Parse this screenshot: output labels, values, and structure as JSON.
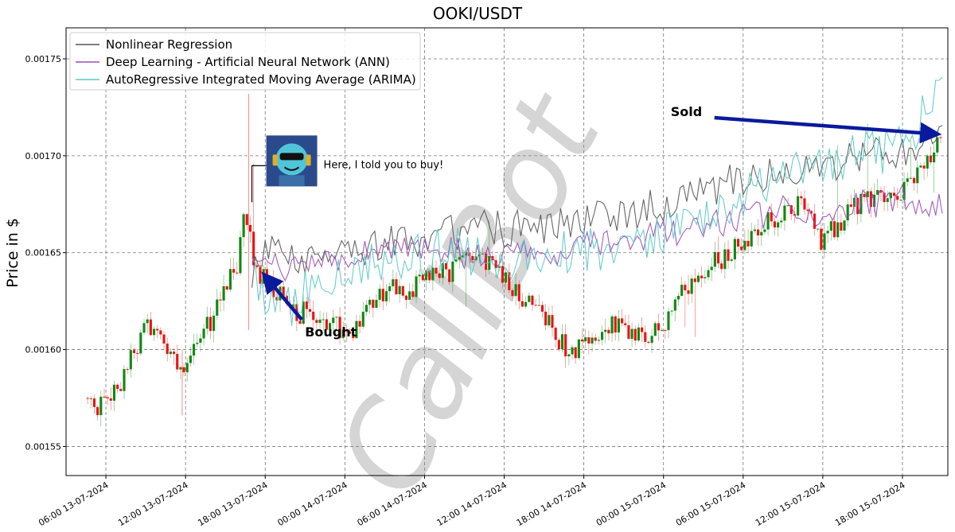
{
  "chart_data": {
    "type": "line",
    "title": "OOKI/USDT",
    "ylabel": "Price in $",
    "xlabel": "",
    "ylim": [
      0.001535,
      0.001766
    ],
    "xlim": [
      "2024-07-13 03:00",
      "2024-07-15 21:25"
    ],
    "grid": true,
    "legend_position": "top-left",
    "x_ticks": [
      {
        "t": "2024-07-13 06:00",
        "label": "06:00 13-07-2024"
      },
      {
        "t": "2024-07-13 12:00",
        "label": "12:00 13-07-2024"
      },
      {
        "t": "2024-07-13 18:00",
        "label": "18:00 13-07-2024"
      },
      {
        "t": "2024-07-14 00:00",
        "label": "00:00 14-07-2024"
      },
      {
        "t": "2024-07-14 06:00",
        "label": "06:00 14-07-2024"
      },
      {
        "t": "2024-07-14 12:00",
        "label": "12:00 14-07-2024"
      },
      {
        "t": "2024-07-14 18:00",
        "label": "18:00 14-07-2024"
      },
      {
        "t": "2024-07-15 00:00",
        "label": "00:00 15-07-2024"
      },
      {
        "t": "2024-07-15 06:00",
        "label": "06:00 15-07-2024"
      },
      {
        "t": "2024-07-15 12:00",
        "label": "12:00 15-07-2024"
      },
      {
        "t": "2024-07-15 18:00",
        "label": "18:00 15-07-2024"
      }
    ],
    "y_ticks": [
      {
        "v": 0.00155,
        "label": "0.00155"
      },
      {
        "v": 0.0016,
        "label": "0.00160"
      },
      {
        "v": 0.00165,
        "label": "0.00165"
      },
      {
        "v": 0.0017,
        "label": "0.00170"
      },
      {
        "v": 0.00175,
        "label": "0.00175"
      }
    ],
    "price_path": [
      [
        "2024-07-13 04:30",
        0.001575
      ],
      [
        "2024-07-13 05:30",
        0.00157
      ],
      [
        "2024-07-13 07:00",
        0.00158
      ],
      [
        "2024-07-13 08:00",
        0.001595
      ],
      [
        "2024-07-13 09:00",
        0.001612
      ],
      [
        "2024-07-13 10:00",
        0.00161
      ],
      [
        "2024-07-13 11:00",
        0.0016
      ],
      [
        "2024-07-13 12:00",
        0.001588
      ],
      [
        "2024-07-13 13:00",
        0.001605
      ],
      [
        "2024-07-13 14:00",
        0.001615
      ],
      [
        "2024-07-13 15:00",
        0.001628
      ],
      [
        "2024-07-13 16:00",
        0.001645
      ],
      [
        "2024-07-13 16:30",
        0.001675
      ],
      [
        "2024-07-13 17:00",
        0.001655
      ],
      [
        "2024-07-13 17:40",
        0.00164
      ],
      [
        "2024-07-13 18:30",
        0.001632
      ],
      [
        "2024-07-13 19:30",
        0.001625
      ],
      [
        "2024-07-13 20:30",
        0.001618
      ],
      [
        "2024-07-13 21:30",
        0.001622
      ],
      [
        "2024-07-13 23:00",
        0.001612
      ],
      [
        "2024-07-14 00:30",
        0.00161
      ],
      [
        "2024-07-14 01:30",
        0.001615
      ],
      [
        "2024-07-14 02:30",
        0.001625
      ],
      [
        "2024-07-14 04:00",
        0.001632
      ],
      [
        "2024-07-14 05:00",
        0.001628
      ],
      [
        "2024-07-14 06:00",
        0.001636
      ],
      [
        "2024-07-14 07:00",
        0.00164
      ],
      [
        "2024-07-14 08:00",
        0.001638
      ],
      [
        "2024-07-14 09:00",
        0.001645
      ],
      [
        "2024-07-14 10:00",
        0.00165
      ],
      [
        "2024-07-14 11:00",
        0.001643
      ],
      [
        "2024-07-14 12:00",
        0.001636
      ],
      [
        "2024-07-14 13:00",
        0.00163
      ],
      [
        "2024-07-14 14:00",
        0.001625
      ],
      [
        "2024-07-14 15:00",
        0.001618
      ],
      [
        "2024-07-14 16:00",
        0.001608
      ],
      [
        "2024-07-14 17:00",
        0.001598
      ],
      [
        "2024-07-14 18:00",
        0.0016
      ],
      [
        "2024-07-14 19:00",
        0.001608
      ],
      [
        "2024-07-14 20:00",
        0.001612
      ],
      [
        "2024-07-14 21:00",
        0.00161
      ],
      [
        "2024-07-14 22:00",
        0.001606
      ],
      [
        "2024-07-14 23:00",
        0.001604
      ],
      [
        "2024-07-15 00:00",
        0.001612
      ],
      [
        "2024-07-15 01:00",
        0.001625
      ],
      [
        "2024-07-15 02:00",
        0.00163
      ],
      [
        "2024-07-15 03:00",
        0.001635
      ],
      [
        "2024-07-15 04:00",
        0.001645
      ],
      [
        "2024-07-15 05:00",
        0.00165
      ],
      [
        "2024-07-15 06:00",
        0.001655
      ],
      [
        "2024-07-15 07:00",
        0.001662
      ],
      [
        "2024-07-15 08:00",
        0.001665
      ],
      [
        "2024-07-15 09:00",
        0.00167
      ],
      [
        "2024-07-15 10:00",
        0.001675
      ],
      [
        "2024-07-15 11:00",
        0.001676
      ],
      [
        "2024-07-15 12:00",
        0.001655
      ],
      [
        "2024-07-15 13:00",
        0.001662
      ],
      [
        "2024-07-15 14:00",
        0.00167
      ],
      [
        "2024-07-15 15:00",
        0.001676
      ],
      [
        "2024-07-15 16:00",
        0.00168
      ],
      [
        "2024-07-15 17:00",
        0.001675
      ],
      [
        "2024-07-15 18:00",
        0.001682
      ],
      [
        "2024-07-15 19:00",
        0.00169
      ],
      [
        "2024-07-15 20:00",
        0.001696
      ],
      [
        "2024-07-15 20:45",
        0.00171
      ]
    ],
    "series": [
      {
        "name": "Nonlinear Regression",
        "color": "#555555",
        "points": [
          [
            "2024-07-13 17:00",
            0.00164
          ],
          [
            "2024-07-13 18:00",
            0.00165
          ],
          [
            "2024-07-13 20:00",
            0.001648
          ],
          [
            "2024-07-13 22:00",
            0.00165
          ],
          [
            "2024-07-14 00:00",
            0.001652
          ],
          [
            "2024-07-14 03:00",
            0.001655
          ],
          [
            "2024-07-14 06:00",
            0.001658
          ],
          [
            "2024-07-14 09:00",
            0.001662
          ],
          [
            "2024-07-14 12:00",
            0.001662
          ],
          [
            "2024-07-14 15:00",
            0.001664
          ],
          [
            "2024-07-14 18:00",
            0.001668
          ],
          [
            "2024-07-14 21:00",
            0.00167
          ],
          [
            "2024-07-15 00:00",
            0.001675
          ],
          [
            "2024-07-15 03:00",
            0.001682
          ],
          [
            "2024-07-15 06:00",
            0.001688
          ],
          [
            "2024-07-15 09:00",
            0.001692
          ],
          [
            "2024-07-15 12:00",
            0.001695
          ],
          [
            "2024-07-15 15:00",
            0.0017
          ],
          [
            "2024-07-15 18:00",
            0.001702
          ],
          [
            "2024-07-15 21:00",
            0.001708
          ]
        ]
      },
      {
        "name": "Deep Learning - Artificial Neural Network (ANN)",
        "color": "#9b4db5",
        "points": [
          [
            "2024-07-13 17:00",
            0.00165
          ],
          [
            "2024-07-13 18:00",
            0.001645
          ],
          [
            "2024-07-13 20:00",
            0.001642
          ],
          [
            "2024-07-13 22:00",
            0.001645
          ],
          [
            "2024-07-14 00:00",
            0.001648
          ],
          [
            "2024-07-14 03:00",
            0.00165
          ],
          [
            "2024-07-14 06:00",
            0.001652
          ],
          [
            "2024-07-14 09:00",
            0.00165
          ],
          [
            "2024-07-14 12:00",
            0.001648
          ],
          [
            "2024-07-14 15:00",
            0.00165
          ],
          [
            "2024-07-14 18:00",
            0.001655
          ],
          [
            "2024-07-14 21:00",
            0.001655
          ],
          [
            "2024-07-15 00:00",
            0.00166
          ],
          [
            "2024-07-15 03:00",
            0.001665
          ],
          [
            "2024-07-15 06:00",
            0.001668
          ],
          [
            "2024-07-15 09:00",
            0.001672
          ],
          [
            "2024-07-15 12:00",
            0.00167
          ],
          [
            "2024-07-15 15:00",
            0.001675
          ],
          [
            "2024-07-15 18:00",
            0.001678
          ],
          [
            "2024-07-15 21:00",
            0.001675
          ]
        ]
      },
      {
        "name": "AutoRegressive Integrated Moving Average (ARIMA)",
        "color": "#5bc8c8",
        "points": [
          [
            "2024-07-13 17:00",
            0.00164
          ],
          [
            "2024-07-13 18:00",
            0.001628
          ],
          [
            "2024-07-13 20:00",
            0.001625
          ],
          [
            "2024-07-13 22:00",
            0.001632
          ],
          [
            "2024-07-14 00:00",
            0.001638
          ],
          [
            "2024-07-14 03:00",
            0.001645
          ],
          [
            "2024-07-14 06:00",
            0.00165
          ],
          [
            "2024-07-14 09:00",
            0.001652
          ],
          [
            "2024-07-14 12:00",
            0.001648
          ],
          [
            "2024-07-14 15:00",
            0.001648
          ],
          [
            "2024-07-14 18:00",
            0.00165
          ],
          [
            "2024-07-14 21:00",
            0.001652
          ],
          [
            "2024-07-15 00:00",
            0.00166
          ],
          [
            "2024-07-15 03:00",
            0.00167
          ],
          [
            "2024-07-15 06:00",
            0.00168
          ],
          [
            "2024-07-15 09:00",
            0.00169
          ],
          [
            "2024-07-15 12:00",
            0.001695
          ],
          [
            "2024-07-15 15:00",
            0.001702
          ],
          [
            "2024-07-15 18:00",
            0.001705
          ],
          [
            "2024-07-15 21:00",
            0.001735
          ]
        ]
      }
    ],
    "annotations": [
      {
        "text": "Bought",
        "t": "2024-07-13 18:00",
        "v": 0.001638
      },
      {
        "text": "Sold",
        "t": "2024-07-15 20:30",
        "v": 0.001711
      },
      {
        "text": "Here, I told you to buy!",
        "t": "2024-07-13 17:00",
        "v": 0.001676
      }
    ],
    "watermark": "CallBot",
    "colors": {
      "up": "#118811",
      "down": "#ee1111",
      "arrow": "#0a1a9c"
    }
  }
}
